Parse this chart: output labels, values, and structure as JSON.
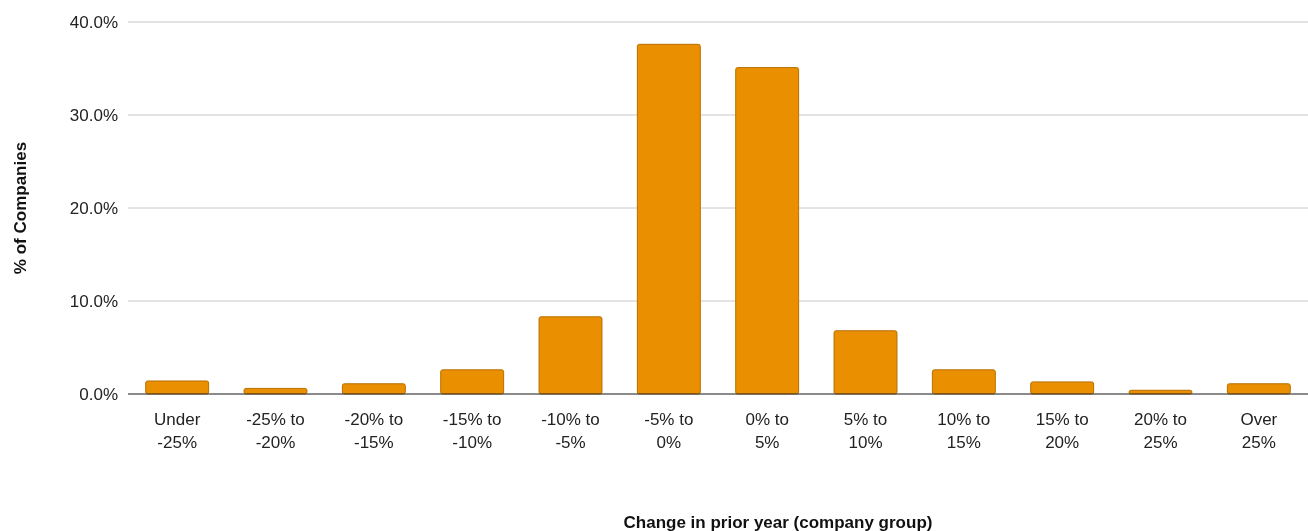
{
  "chart_data": {
    "type": "bar",
    "xlabel": "Change in prior year (company group)",
    "ylabel": "% of Companies",
    "categories": [
      "Under -25%",
      "-25% to -20%",
      "-20% to -15%",
      "-15% to -10%",
      "-10% to -5%",
      "-5% to 0%",
      "0% to 5%",
      "5% to 10%",
      "10% to 15%",
      "15% to 20%",
      "20% to 25%",
      "Over 25%"
    ],
    "values": [
      1.4,
      0.6,
      1.1,
      2.6,
      8.3,
      37.6,
      35.1,
      6.8,
      2.6,
      1.3,
      0.4,
      1.1
    ],
    "color": "#ea8f00",
    "ylim": [
      0,
      40
    ],
    "yticks": [
      {
        "value": 0,
        "label": "0.0%"
      },
      {
        "value": 10,
        "label": "10.0%"
      },
      {
        "value": 20,
        "label": "20.0%"
      },
      {
        "value": 30,
        "label": "30.0%"
      },
      {
        "value": 40,
        "label": "40.0%"
      }
    ],
    "grid": "y"
  }
}
